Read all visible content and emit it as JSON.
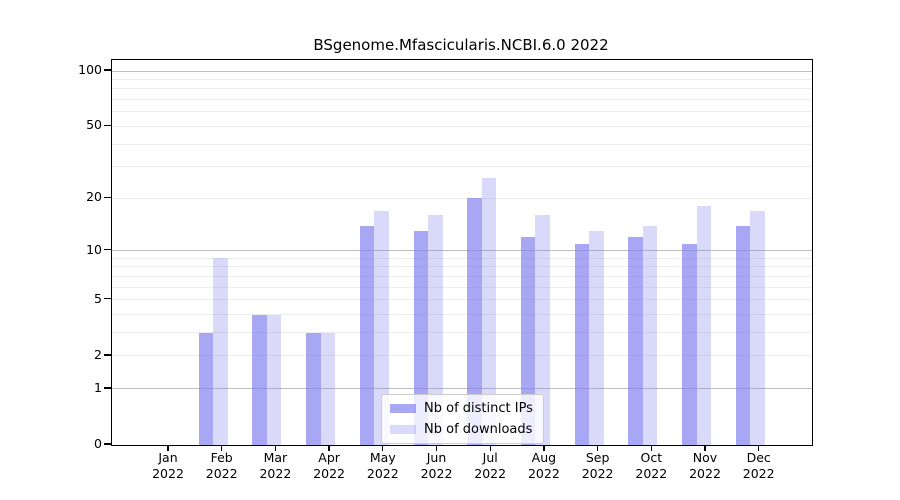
{
  "chart_data": {
    "type": "bar",
    "title": "BSgenome.Mfascicularis.NCBI.6.0 2022",
    "categories": [
      "Jan",
      "Feb",
      "Mar",
      "Apr",
      "May",
      "Jun",
      "Jul",
      "Aug",
      "Sep",
      "Oct",
      "Nov",
      "Dec"
    ],
    "category_year": "2022",
    "series": [
      {
        "name": "Nb of distinct IPs",
        "color": "rgba(130,130,240,0.7)",
        "values": [
          0,
          3,
          4,
          3,
          14,
          13,
          20,
          12,
          11,
          12,
          11,
          14
        ]
      },
      {
        "name": "Nb of downloads",
        "color": "rgba(130,130,240,0.3)",
        "values": [
          0,
          9,
          4,
          3,
          17,
          16,
          26,
          16,
          13,
          14,
          18,
          17
        ]
      }
    ],
    "xlabel": "",
    "ylabel": "",
    "yscale": "log1p",
    "ylim": [
      0,
      115
    ],
    "ytick_values": [
      0,
      1,
      2,
      5,
      10,
      20,
      50,
      100
    ],
    "ytick_labels": [
      "0",
      "1",
      "2",
      "5",
      "10",
      "20",
      "50",
      "100"
    ],
    "grid": "on",
    "major_grid_values": [
      1,
      10,
      100
    ],
    "minor_grid_values": [
      2,
      3,
      4,
      5,
      6,
      7,
      8,
      9,
      20,
      30,
      40,
      50,
      60,
      70,
      80,
      90
    ],
    "legend_position": "lower center",
    "colors": {
      "axis": "#000000",
      "major_grid": "#bdbdbd",
      "minor_grid": "#ececec",
      "legend_border": "#cccccc",
      "legend_background": "rgba(255,255,255,0.8)"
    }
  }
}
